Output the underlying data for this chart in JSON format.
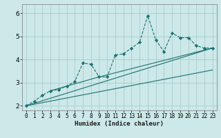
{
  "xlabel": "Humidex (Indice chaleur)",
  "bg_color": "#cce8e8",
  "grid_color": "#aacccc",
  "line_color": "#1a7070",
  "xlim": [
    -0.5,
    23.5
  ],
  "ylim": [
    1.8,
    6.4
  ],
  "yticks": [
    2,
    3,
    4,
    5,
    6
  ],
  "xticks": [
    0,
    1,
    2,
    3,
    4,
    5,
    6,
    7,
    8,
    9,
    10,
    11,
    12,
    13,
    14,
    15,
    16,
    17,
    18,
    19,
    20,
    21,
    22,
    23
  ],
  "series": [
    [
      0,
      2.0
    ],
    [
      1,
      2.2
    ],
    [
      2,
      2.45
    ],
    [
      3,
      2.65
    ],
    [
      4,
      2.7
    ],
    [
      5,
      2.85
    ],
    [
      6,
      3.05
    ],
    [
      7,
      3.85
    ],
    [
      8,
      3.8
    ],
    [
      9,
      3.25
    ],
    [
      10,
      3.25
    ],
    [
      11,
      4.2
    ],
    [
      12,
      4.25
    ],
    [
      13,
      4.5
    ],
    [
      14,
      4.75
    ],
    [
      15,
      5.9
    ],
    [
      16,
      4.85
    ],
    [
      17,
      4.35
    ],
    [
      18,
      5.15
    ],
    [
      19,
      4.95
    ],
    [
      20,
      4.95
    ],
    [
      21,
      4.6
    ],
    [
      22,
      4.5
    ],
    [
      23,
      4.5
    ]
  ],
  "line1_x": [
    0,
    23
  ],
  "line1_y": [
    2.0,
    4.5
  ],
  "line2_x": [
    0,
    23
  ],
  "line2_y": [
    2.0,
    3.55
  ],
  "line3_x": [
    3,
    9,
    23
  ],
  "line3_y": [
    2.65,
    3.25,
    4.5
  ]
}
